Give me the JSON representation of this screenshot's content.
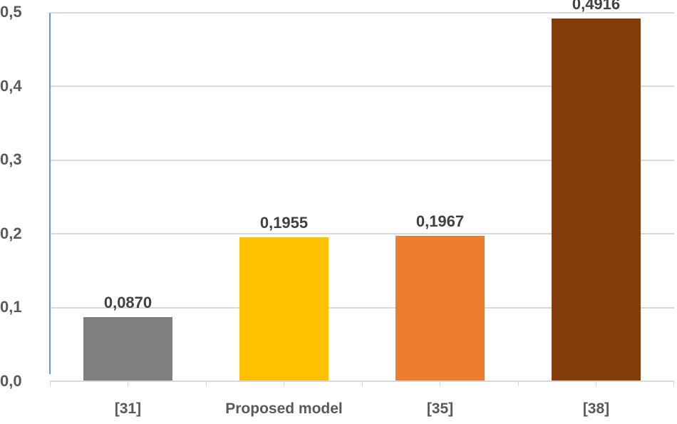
{
  "chart_data": {
    "type": "bar",
    "title": "",
    "xlabel": "",
    "ylabel": "",
    "categories": [
      "[31]",
      "Proposed model",
      "[35]",
      "[38]"
    ],
    "values": [
      0.087,
      0.1955,
      0.1967,
      0.4916
    ],
    "data_labels": [
      "0,0870",
      "0,1955",
      "0,1967",
      "0,4916"
    ],
    "colors": [
      "#7f7f7f",
      "#ffc000",
      "#ed7d31",
      "#843c0c"
    ],
    "ylim": [
      0,
      0.5
    ],
    "yticks": [
      "0,0",
      "0,1",
      "0,2",
      "0,3",
      "0,4",
      "0,5"
    ],
    "grid": true,
    "legend": null
  }
}
